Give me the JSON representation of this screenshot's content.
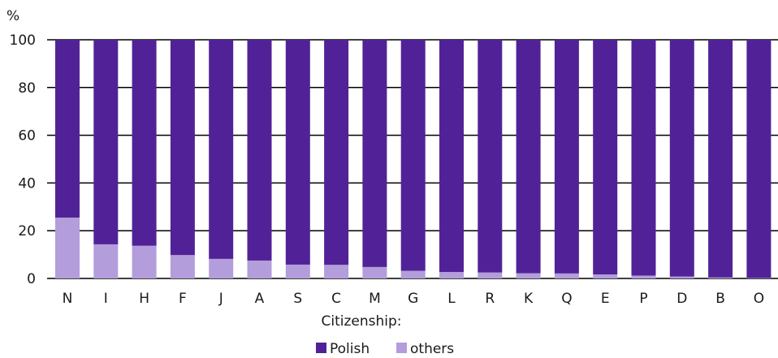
{
  "chart_data": {
    "type": "bar",
    "stacked": true,
    "ylabel": "%",
    "xlabel": "Citizenship:",
    "ylim": [
      0,
      100
    ],
    "yticks": [
      0,
      20,
      40,
      60,
      80,
      100
    ],
    "grid": "horizontal",
    "legend_position": "bottom-center",
    "categories": [
      "N",
      "I",
      "H",
      "F",
      "J",
      "A",
      "S",
      "C",
      "M",
      "G",
      "L",
      "R",
      "K",
      "Q",
      "E",
      "P",
      "D",
      "B",
      "O"
    ],
    "series": [
      {
        "name": "others",
        "color": "#b39ddb",
        "values": [
          25.5,
          14.3,
          13.7,
          9.8,
          8.2,
          7.5,
          5.8,
          5.7,
          4.8,
          3.2,
          2.7,
          2.5,
          2.2,
          2.1,
          1.7,
          1.2,
          0.8,
          0.4,
          0.2
        ]
      },
      {
        "name": "Polish",
        "color": "#512297",
        "values": [
          74.5,
          85.7,
          86.3,
          90.2,
          91.8,
          92.5,
          94.2,
          94.3,
          95.2,
          96.8,
          97.3,
          97.5,
          97.8,
          97.9,
          98.3,
          98.8,
          99.2,
          99.6,
          99.8
        ]
      }
    ],
    "legend_order": [
      "Polish",
      "others"
    ]
  }
}
